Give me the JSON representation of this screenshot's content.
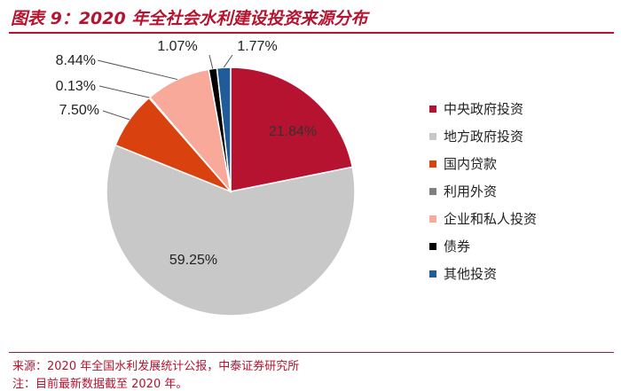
{
  "header": {
    "title": "图表 9：2020 年全社会水利建设投资来源分布"
  },
  "footer": {
    "source": "来源：2020 年全国水利发展统计公报，中泰证券研究所",
    "note": "注：目前最新数据截至 2020 年。"
  },
  "chart_data": {
    "type": "pie",
    "title": "图表 9：2020 年全社会水利建设投资来源分布",
    "legend_position": "right",
    "start_angle": "top, clockwise",
    "slices": [
      {
        "name": "中央政府投资",
        "value": 21.84,
        "label": "21.84%",
        "color": "#b5132f"
      },
      {
        "name": "地方政府投资",
        "value": 59.25,
        "label": "59.25%",
        "color": "#c8c8c8"
      },
      {
        "name": "国内贷款",
        "value": 7.5,
        "label": "7.50%",
        "color": "#d9410e"
      },
      {
        "name": "利用外资",
        "value": 0.13,
        "label": "0.13%",
        "color": "#808080"
      },
      {
        "name": "企业和私人投资",
        "value": 8.44,
        "label": "8.44%",
        "color": "#f8a99a"
      },
      {
        "name": "债券",
        "value": 1.07,
        "label": "1.07%",
        "color": "#000000"
      },
      {
        "name": "其他投资",
        "value": 1.77,
        "label": "1.77%",
        "color": "#1f5c99"
      }
    ]
  }
}
